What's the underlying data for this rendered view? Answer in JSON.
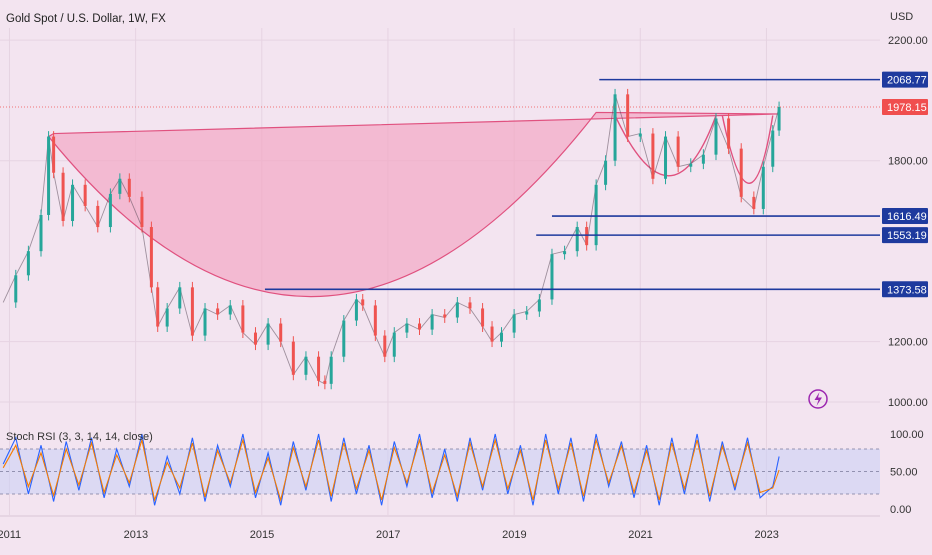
{
  "chart_data": [
    {
      "type": "line",
      "title": "Gold Spot / U.S. Dollar, 1W, FX",
      "y_unit": "USD",
      "y_ticks": [
        "2200.00",
        "1800.00",
        "1200.00",
        "1000.00"
      ],
      "x_ticks": [
        "2011",
        "2013",
        "2015",
        "2017",
        "2019",
        "2021",
        "2023"
      ],
      "ylim": [
        960,
        2240
      ],
      "xlim": [
        2010.85,
        2024.8
      ],
      "grid": true,
      "series": [
        {
          "name": "",
          "color": "#26a69a",
          "down_color": "#ef5350",
          "x": [
            2010.9,
            2011.1,
            2011.3,
            2011.5,
            2011.62,
            2011.7,
            2011.85,
            2012.0,
            2012.2,
            2012.4,
            2012.6,
            2012.75,
            2012.9,
            2013.1,
            2013.25,
            2013.35,
            2013.5,
            2013.7,
            2013.9,
            2014.1,
            2014.3,
            2014.5,
            2014.7,
            2014.9,
            2015.1,
            2015.3,
            2015.5,
            2015.7,
            2015.9,
            2016.0,
            2016.1,
            2016.3,
            2016.5,
            2016.6,
            2016.8,
            2016.95,
            2017.1,
            2017.3,
            2017.5,
            2017.7,
            2017.9,
            2018.1,
            2018.3,
            2018.5,
            2018.65,
            2018.8,
            2019.0,
            2019.2,
            2019.4,
            2019.6,
            2019.8,
            2020.0,
            2020.15,
            2020.3,
            2020.45,
            2020.6,
            2020.8,
            2021.0,
            2021.2,
            2021.4,
            2021.6,
            2021.8,
            2022.0,
            2022.2,
            2022.4,
            2022.6,
            2022.8,
            2022.95,
            2023.1,
            2023.2
          ],
          "values": [
            1330,
            1420,
            1500,
            1620,
            1880,
            1760,
            1600,
            1720,
            1650,
            1580,
            1690,
            1740,
            1680,
            1580,
            1380,
            1250,
            1310,
            1380,
            1220,
            1310,
            1290,
            1320,
            1230,
            1190,
            1260,
            1200,
            1090,
            1150,
            1070,
            1060,
            1150,
            1270,
            1340,
            1320,
            1220,
            1150,
            1230,
            1260,
            1240,
            1290,
            1280,
            1330,
            1310,
            1250,
            1200,
            1230,
            1290,
            1300,
            1340,
            1490,
            1500,
            1580,
            1520,
            1720,
            1800,
            2020,
            1880,
            1890,
            1740,
            1880,
            1780,
            1790,
            1820,
            1940,
            1840,
            1680,
            1640,
            1780,
            1900,
            1978
          ]
        }
      ],
      "price_labels": [
        "2068.77",
        "1978.15",
        "1616.49",
        "1553.19",
        "1373.58"
      ],
      "levels": [
        2068.77,
        1616.49,
        1553.19,
        1373.58
      ],
      "last_price": 1978.15,
      "pattern": "cup and handle",
      "accent_color": "#f2a8c4",
      "level_color": "#1e3a9e",
      "last_price_color": "#f04e4e"
    },
    {
      "type": "line",
      "title": "Stoch RSI (3, 3, 14, 14, close)",
      "y_ticks": [
        "100.00",
        "50.00",
        "0.00"
      ],
      "ylim": [
        0,
        100
      ],
      "bands": [
        20,
        80
      ],
      "midline": 50,
      "series": [
        {
          "name": "",
          "color": "#2962ff",
          "x": [
            2010.9,
            2011.1,
            2011.3,
            2011.5,
            2011.7,
            2011.9,
            2012.1,
            2012.3,
            2012.5,
            2012.7,
            2012.9,
            2013.1,
            2013.3,
            2013.5,
            2013.7,
            2013.9,
            2014.1,
            2014.3,
            2014.5,
            2014.7,
            2014.9,
            2015.1,
            2015.3,
            2015.5,
            2015.7,
            2015.9,
            2016.1,
            2016.3,
            2016.5,
            2016.7,
            2016.9,
            2017.1,
            2017.3,
            2017.5,
            2017.7,
            2017.9,
            2018.1,
            2018.3,
            2018.5,
            2018.7,
            2018.9,
            2019.1,
            2019.3,
            2019.5,
            2019.7,
            2019.9,
            2020.1,
            2020.3,
            2020.5,
            2020.7,
            2020.9,
            2021.1,
            2021.3,
            2021.5,
            2021.7,
            2021.9,
            2022.1,
            2022.3,
            2022.5,
            2022.7,
            2022.9,
            2023.1,
            2023.2
          ],
          "values": [
            60,
            95,
            20,
            85,
            10,
            90,
            25,
            95,
            15,
            80,
            30,
            100,
            5,
            70,
            20,
            95,
            10,
            85,
            30,
            100,
            15,
            75,
            5,
            90,
            25,
            100,
            10,
            95,
            20,
            85,
            5,
            90,
            30,
            100,
            15,
            80,
            10,
            95,
            25,
            100,
            20,
            85,
            5,
            100,
            20,
            95,
            10,
            100,
            30,
            90,
            15,
            85,
            5,
            95,
            20,
            100,
            10,
            90,
            25,
            95,
            15,
            30,
            70
          ]
        },
        {
          "name": "",
          "color": "#f57c00",
          "x": [
            2010.9,
            2011.1,
            2011.3,
            2011.5,
            2011.7,
            2011.9,
            2012.1,
            2012.3,
            2012.5,
            2012.7,
            2012.9,
            2013.1,
            2013.3,
            2013.5,
            2013.7,
            2013.9,
            2014.1,
            2014.3,
            2014.5,
            2014.7,
            2014.9,
            2015.1,
            2015.3,
            2015.5,
            2015.7,
            2015.9,
            2016.1,
            2016.3,
            2016.5,
            2016.7,
            2016.9,
            2017.1,
            2017.3,
            2017.5,
            2017.7,
            2017.9,
            2018.1,
            2018.3,
            2018.5,
            2018.7,
            2018.9,
            2019.1,
            2019.3,
            2019.5,
            2019.7,
            2019.9,
            2020.1,
            2020.3,
            2020.5,
            2020.7,
            2020.9,
            2021.1,
            2021.3,
            2021.5,
            2021.7,
            2021.9,
            2022.1,
            2022.3,
            2022.5,
            2022.7,
            2022.9,
            2023.1,
            2023.2
          ],
          "values": [
            55,
            85,
            30,
            75,
            18,
            80,
            32,
            88,
            22,
            72,
            35,
            92,
            12,
            62,
            28,
            88,
            16,
            78,
            35,
            92,
            22,
            68,
            12,
            82,
            30,
            92,
            17,
            88,
            27,
            78,
            12,
            82,
            35,
            92,
            22,
            72,
            17,
            88,
            30,
            92,
            27,
            78,
            12,
            92,
            27,
            88,
            17,
            92,
            35,
            84,
            22,
            78,
            12,
            88,
            27,
            92,
            17,
            84,
            30,
            88,
            22,
            28,
            52
          ]
        }
      ]
    }
  ]
}
